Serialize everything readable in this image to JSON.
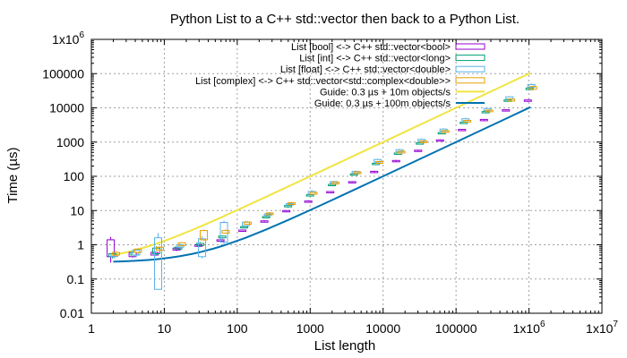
{
  "chart_data": {
    "type": "line",
    "title": "Python List to a C++ std::vector then back to a Python List.",
    "xlabel": "List length",
    "ylabel": "Time (µs)",
    "x_scale": "log",
    "y_scale": "log",
    "xlim": [
      1,
      10000000
    ],
    "ylim": [
      0.01,
      1000000
    ],
    "grid": true,
    "legend_position": "top-right",
    "x_ticks": [
      {
        "value": 1,
        "label": "1",
        "sup": ""
      },
      {
        "value": 10,
        "label": "10",
        "sup": ""
      },
      {
        "value": 100,
        "label": "100",
        "sup": ""
      },
      {
        "value": 1000,
        "label": "1000",
        "sup": ""
      },
      {
        "value": 10000,
        "label": "10000",
        "sup": ""
      },
      {
        "value": 100000,
        "label": "100000",
        "sup": ""
      },
      {
        "value": 1000000,
        "label": "1x10",
        "sup": "6"
      },
      {
        "value": 10000000,
        "label": "1x10",
        "sup": "7"
      }
    ],
    "y_ticks": [
      {
        "value": 0.01,
        "label": "0.01",
        "sup": ""
      },
      {
        "value": 0.1,
        "label": "0.1",
        "sup": ""
      },
      {
        "value": 1,
        "label": "1",
        "sup": ""
      },
      {
        "value": 10,
        "label": "10",
        "sup": ""
      },
      {
        "value": 100,
        "label": "100",
        "sup": ""
      },
      {
        "value": 1000,
        "label": "1000",
        "sup": ""
      },
      {
        "value": 10000,
        "label": "10000",
        "sup": ""
      },
      {
        "value": 100000,
        "label": "100000",
        "sup": ""
      },
      {
        "value": 1000000,
        "label": "1x10",
        "sup": "6"
      }
    ],
    "box_series": [
      {
        "name": "List [bool] <-> C++ std::vector<bool>",
        "color": "#9400d3",
        "offset": -0.036,
        "boxes": [
          {
            "x": 2,
            "low": 0.3,
            "q1": 0.45,
            "q3": 1.4,
            "high": 1.7
          },
          {
            "x": 4,
            "low": 0.42,
            "q1": 0.45,
            "q3": 0.6,
            "high": 0.65
          },
          {
            "x": 8,
            "low": 0.45,
            "q1": 0.5,
            "q3": 0.6,
            "high": 0.65
          },
          {
            "x": 16,
            "low": 0.65,
            "q1": 0.7,
            "q3": 0.8,
            "high": 0.85
          },
          {
            "x": 32,
            "low": 0.85,
            "q1": 0.9,
            "q3": 1.0,
            "high": 1.05
          },
          {
            "x": 64,
            "low": 1.2,
            "q1": 1.3,
            "q3": 1.4,
            "high": 1.5
          },
          {
            "x": 128,
            "low": 2.4,
            "q1": 2.5,
            "q3": 2.7,
            "high": 2.8
          },
          {
            "x": 256,
            "low": 4.6,
            "q1": 4.8,
            "q3": 5.0,
            "high": 5.2
          },
          {
            "x": 512,
            "low": 9.2,
            "q1": 9.5,
            "q3": 10.0,
            "high": 10.3
          },
          {
            "x": 1024,
            "low": 17,
            "q1": 18,
            "q3": 19,
            "high": 20
          },
          {
            "x": 2048,
            "low": 33,
            "q1": 34,
            "q3": 36,
            "high": 37
          },
          {
            "x": 4096,
            "low": 65,
            "q1": 67,
            "q3": 70,
            "high": 72
          },
          {
            "x": 8192,
            "low": 130,
            "q1": 135,
            "q3": 140,
            "high": 145
          },
          {
            "x": 16384,
            "low": 270,
            "q1": 280,
            "q3": 290,
            "high": 300
          },
          {
            "x": 32768,
            "low": 540,
            "q1": 560,
            "q3": 580,
            "high": 600
          },
          {
            "x": 65536,
            "low": 1100,
            "q1": 1120,
            "q3": 1160,
            "high": 1200
          },
          {
            "x": 131072,
            "low": 2200,
            "q1": 2250,
            "q3": 2350,
            "high": 2400
          },
          {
            "x": 262144,
            "low": 4300,
            "q1": 4400,
            "q3": 4600,
            "high": 4700
          },
          {
            "x": 524288,
            "low": 8300,
            "q1": 8500,
            "q3": 8800,
            "high": 9000
          },
          {
            "x": 1048576,
            "low": 15000,
            "q1": 15500,
            "q3": 17000,
            "high": 17500
          }
        ]
      },
      {
        "name": "List [int] <-> C++ std::vector<long>",
        "color": "#009e73",
        "offset": -0.012,
        "boxes": [
          {
            "x": 2,
            "low": 0.4,
            "q1": 0.45,
            "q3": 0.55,
            "high": 0.6
          },
          {
            "x": 4,
            "low": 0.45,
            "q1": 0.5,
            "q3": 0.6,
            "high": 0.65
          },
          {
            "x": 8,
            "low": 0.5,
            "q1": 0.55,
            "q3": 0.8,
            "high": 0.9
          },
          {
            "x": 16,
            "low": 0.7,
            "q1": 0.75,
            "q3": 0.85,
            "high": 0.9
          },
          {
            "x": 32,
            "low": 0.9,
            "q1": 0.95,
            "q3": 1.1,
            "high": 1.2
          },
          {
            "x": 64,
            "low": 1.5,
            "q1": 1.6,
            "q3": 1.8,
            "high": 1.9
          },
          {
            "x": 128,
            "low": 3.0,
            "q1": 3.1,
            "q3": 3.4,
            "high": 3.6
          },
          {
            "x": 256,
            "low": 6.0,
            "q1": 6.2,
            "q3": 6.7,
            "high": 7.0
          },
          {
            "x": 512,
            "low": 12,
            "q1": 13,
            "q3": 14,
            "high": 14.5
          },
          {
            "x": 1024,
            "low": 26,
            "q1": 27,
            "q3": 29,
            "high": 30
          },
          {
            "x": 2048,
            "low": 52,
            "q1": 54,
            "q3": 58,
            "high": 60
          },
          {
            "x": 4096,
            "low": 105,
            "q1": 110,
            "q3": 118,
            "high": 122
          },
          {
            "x": 8192,
            "low": 210,
            "q1": 220,
            "q3": 240,
            "high": 250
          },
          {
            "x": 16384,
            "low": 420,
            "q1": 440,
            "q3": 480,
            "high": 500
          },
          {
            "x": 32768,
            "low": 850,
            "q1": 880,
            "q3": 950,
            "high": 1000
          },
          {
            "x": 65536,
            "low": 1700,
            "q1": 1750,
            "q3": 1900,
            "high": 2000
          },
          {
            "x": 131072,
            "low": 3400,
            "q1": 3500,
            "q3": 3800,
            "high": 4000
          },
          {
            "x": 262144,
            "low": 7000,
            "q1": 7200,
            "q3": 7800,
            "high": 8000
          },
          {
            "x": 524288,
            "low": 15000,
            "q1": 15500,
            "q3": 17000,
            "high": 17500
          },
          {
            "x": 1048576,
            "low": 33000,
            "q1": 34000,
            "q3": 38000,
            "high": 40000
          }
        ]
      },
      {
        "name": "List [float] <-> C++ std::vector<double>",
        "color": "#56b4e9",
        "offset": 0.012,
        "boxes": [
          {
            "x": 2,
            "low": 0.4,
            "q1": 0.45,
            "q3": 0.5,
            "high": 0.55
          },
          {
            "x": 4,
            "low": 0.45,
            "q1": 0.5,
            "q3": 0.7,
            "high": 0.75
          },
          {
            "x": 8,
            "low": 0.05,
            "q1": 0.05,
            "q3": 1.6,
            "high": 2.2
          },
          {
            "x": 16,
            "low": 0.8,
            "q1": 0.85,
            "q3": 1.0,
            "high": 1.1
          },
          {
            "x": 32,
            "low": 0.4,
            "q1": 0.45,
            "q3": 1.5,
            "high": 1.8
          },
          {
            "x": 64,
            "low": 1.0,
            "q1": 1.2,
            "q3": 4.5,
            "high": 5.0
          },
          {
            "x": 128,
            "low": 3.5,
            "q1": 3.6,
            "q3": 4.6,
            "high": 5.0
          },
          {
            "x": 256,
            "low": 7.0,
            "q1": 7.2,
            "q3": 8.0,
            "high": 8.5
          },
          {
            "x": 512,
            "low": 14,
            "q1": 14.5,
            "q3": 16,
            "high": 17
          },
          {
            "x": 1024,
            "low": 29,
            "q1": 30,
            "q3": 36,
            "high": 40
          },
          {
            "x": 2048,
            "low": 60,
            "q1": 62,
            "q3": 70,
            "high": 74
          },
          {
            "x": 4096,
            "low": 120,
            "q1": 124,
            "q3": 140,
            "high": 148
          },
          {
            "x": 8192,
            "low": 250,
            "q1": 260,
            "q3": 310,
            "high": 330
          },
          {
            "x": 16384,
            "low": 500,
            "q1": 520,
            "q3": 600,
            "high": 640
          },
          {
            "x": 32768,
            "low": 1000,
            "q1": 1040,
            "q3": 1200,
            "high": 1280
          },
          {
            "x": 65536,
            "low": 2000,
            "q1": 2100,
            "q3": 2400,
            "high": 2550
          },
          {
            "x": 131072,
            "low": 4000,
            "q1": 4200,
            "q3": 4800,
            "high": 5100
          },
          {
            "x": 262144,
            "low": 8000,
            "q1": 8400,
            "q3": 9600,
            "high": 10000
          },
          {
            "x": 524288,
            "low": 17000,
            "q1": 18000,
            "q3": 21000,
            "high": 22000
          },
          {
            "x": 1048576,
            "low": 38000,
            "q1": 40000,
            "q3": 48000,
            "high": 52000
          }
        ]
      },
      {
        "name": "List [complex] <-> C++ std::vector<std::complex<double>>",
        "color": "#e69f00",
        "offset": 0.036,
        "boxes": [
          {
            "x": 2,
            "low": 0.45,
            "q1": 0.5,
            "q3": 0.6,
            "high": 0.65
          },
          {
            "x": 4,
            "low": 0.55,
            "q1": 0.6,
            "q3": 0.75,
            "high": 0.8
          },
          {
            "x": 8,
            "low": 0.65,
            "q1": 0.7,
            "q3": 0.85,
            "high": 0.9
          },
          {
            "x": 16,
            "low": 0.9,
            "q1": 0.95,
            "q3": 1.15,
            "high": 1.2
          },
          {
            "x": 32,
            "low": 1.3,
            "q1": 1.4,
            "q3": 2.6,
            "high": 2.8
          },
          {
            "x": 64,
            "low": 2.1,
            "q1": 2.2,
            "q3": 2.6,
            "high": 2.8
          },
          {
            "x": 128,
            "low": 3.8,
            "q1": 4.0,
            "q3": 4.6,
            "high": 4.9
          },
          {
            "x": 256,
            "low": 7.3,
            "q1": 7.6,
            "q3": 8.5,
            "high": 9.0
          },
          {
            "x": 512,
            "low": 14.5,
            "q1": 15,
            "q3": 17,
            "high": 18
          },
          {
            "x": 1024,
            "low": 29,
            "q1": 30,
            "q3": 34,
            "high": 36
          },
          {
            "x": 2048,
            "low": 58,
            "q1": 60,
            "q3": 68,
            "high": 72
          },
          {
            "x": 4096,
            "low": 115,
            "q1": 120,
            "q3": 135,
            "high": 142
          },
          {
            "x": 8192,
            "low": 230,
            "q1": 240,
            "q3": 270,
            "high": 285
          },
          {
            "x": 16384,
            "low": 460,
            "q1": 480,
            "q3": 540,
            "high": 570
          },
          {
            "x": 32768,
            "low": 920,
            "q1": 960,
            "q3": 1080,
            "high": 1140
          },
          {
            "x": 65536,
            "low": 1850,
            "q1": 1920,
            "q3": 2160,
            "high": 2280
          },
          {
            "x": 131072,
            "low": 3700,
            "q1": 3850,
            "q3": 4300,
            "high": 4550
          },
          {
            "x": 262144,
            "low": 7400,
            "q1": 7700,
            "q3": 8600,
            "high": 9100
          },
          {
            "x": 524288,
            "low": 15000,
            "q1": 15800,
            "q3": 18000,
            "high": 19000
          },
          {
            "x": 1048576,
            "low": 33000,
            "q1": 35000,
            "q3": 42000,
            "high": 45000
          }
        ]
      }
    ],
    "line_series": [
      {
        "name": "Guide: 0.3 µs + 10m objects/s",
        "color": "#f0e442",
        "x": [
          2,
          3,
          4,
          6,
          8,
          12,
          16,
          24,
          32,
          48,
          64,
          128,
          256,
          512,
          1024,
          2048,
          4096,
          8192,
          16384,
          32768,
          65536,
          131072,
          262144,
          524288,
          1048576
        ],
        "y": [
          0.5,
          0.6,
          0.7,
          0.9,
          1.1,
          1.5,
          1.9,
          2.7,
          3.5,
          5.1,
          6.7,
          13.1,
          25.9,
          51.5,
          102.7,
          205.1,
          409.9,
          819.5,
          1638.7,
          3277.1,
          6553.9,
          13107.5,
          26214.7,
          52429.1,
          104857.9
        ]
      },
      {
        "name": "Guide: 0.3 µs + 100m objects/s",
        "color": "#0072b2",
        "x": [
          2,
          3,
          4,
          6,
          8,
          12,
          16,
          24,
          32,
          48,
          64,
          128,
          256,
          512,
          1024,
          2048,
          4096,
          8192,
          16384,
          32768,
          65536,
          131072,
          262144,
          524288,
          1048576
        ],
        "y": [
          0.32,
          0.33,
          0.34,
          0.36,
          0.38,
          0.42,
          0.46,
          0.54,
          0.62,
          0.78,
          0.94,
          1.58,
          2.86,
          5.42,
          10.54,
          20.78,
          41.26,
          82.22,
          164.14,
          327.98,
          655.66,
          1311.02,
          2621.74,
          5243.18,
          10486.06
        ]
      }
    ]
  }
}
